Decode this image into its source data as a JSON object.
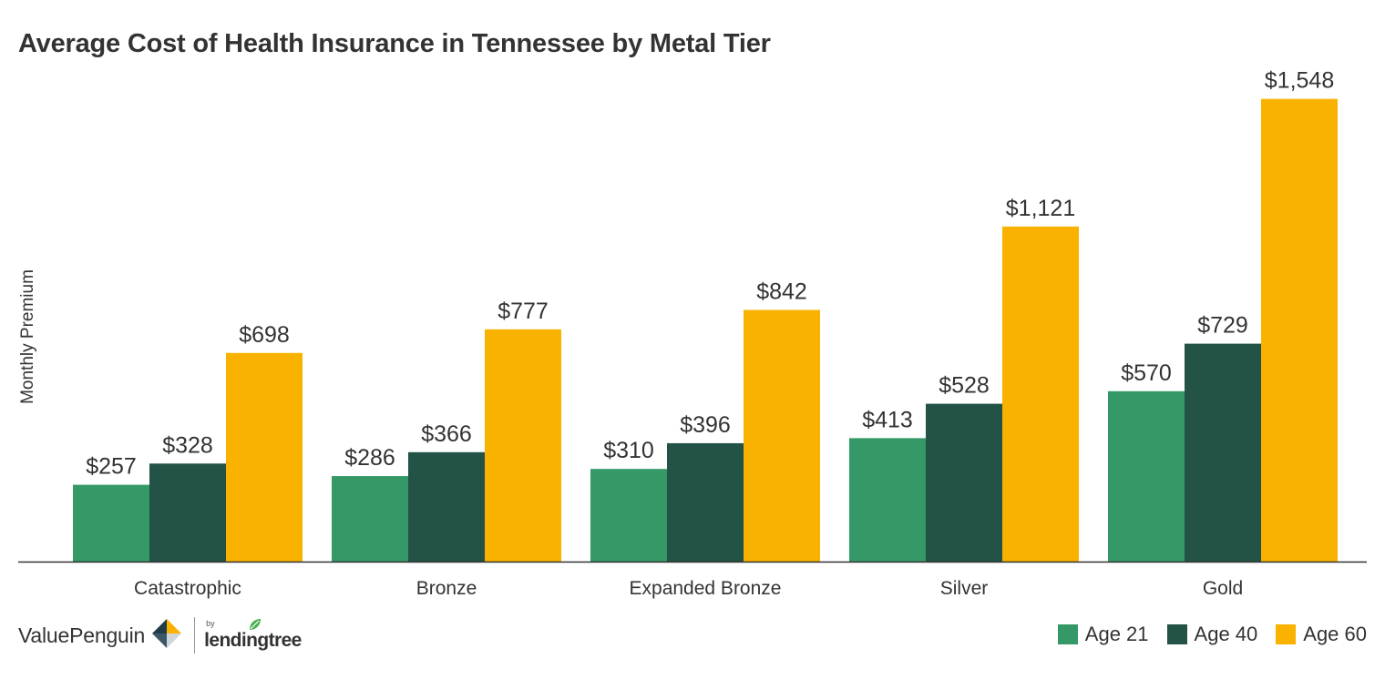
{
  "chart_data": {
    "type": "bar",
    "title": "Average Cost of Health Insurance in Tennessee by Metal Tier",
    "xlabel": "",
    "ylabel": "Monthly Premium",
    "ylim": [
      0,
      1620
    ],
    "grid": false,
    "legend_position": "bottom-right",
    "categories": [
      "Catastrophic",
      "Bronze",
      "Expanded Bronze",
      "Silver",
      "Gold"
    ],
    "series": [
      {
        "name": "Age 21",
        "color": "#349966",
        "values": [
          257,
          286,
          310,
          413,
          570
        ],
        "labels": [
          "$257",
          "$286",
          "$310",
          "$413",
          "$570"
        ]
      },
      {
        "name": "Age 40",
        "color": "#235246",
        "values": [
          328,
          366,
          396,
          528,
          729
        ],
        "labels": [
          "$328",
          "$366",
          "$396",
          "$528",
          "$729"
        ]
      },
      {
        "name": "Age 60",
        "color": "#F9B200",
        "values": [
          698,
          777,
          842,
          1121,
          1548
        ],
        "labels": [
          "$698",
          "$777",
          "$842",
          "$1,121",
          "$1,548"
        ]
      }
    ]
  },
  "footer": {
    "brand_name": "ValuePenguin",
    "partner_prefix": "by",
    "partner_name": "lendingtree",
    "brand_icon": "valuepenguin-logo-icon",
    "partner_icon": "lendingtree-leaf-icon"
  }
}
